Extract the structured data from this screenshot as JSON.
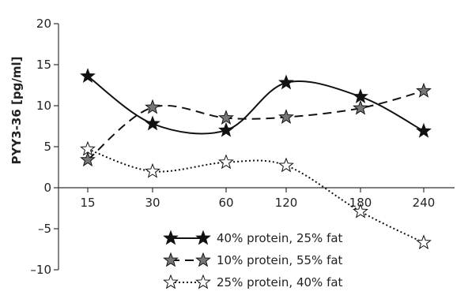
{
  "chart_data": {
    "type": "line",
    "title": "",
    "xlabel": "",
    "ylabel": "PYY3-36 [pg/ml]",
    "categories": [
      "15",
      "30",
      "60",
      "120",
      "180",
      "240"
    ],
    "ylim": [
      -10,
      20
    ],
    "yticks": [
      "–10",
      "–5",
      "0",
      "5",
      "10",
      "15",
      "20"
    ],
    "grid": false,
    "legend_position": "bottom-center",
    "series": [
      {
        "name": "40% protein, 25% fat",
        "values": [
          13.6,
          7.8,
          7.0,
          12.8,
          11.1,
          6.9
        ],
        "line": "solid",
        "marker": "filled-black-star",
        "color": "#111111"
      },
      {
        "name": "10% protein, 55% fat",
        "values": [
          3.4,
          9.8,
          8.5,
          8.6,
          9.7,
          11.8
        ],
        "line": "dashed",
        "marker": "filled-gray-star",
        "color": "#777777"
      },
      {
        "name": "25% protein, 40% fat",
        "values": [
          4.7,
          2.0,
          3.1,
          2.7,
          -2.9,
          -6.7
        ],
        "line": "dotted",
        "marker": "hollow-star",
        "color": "#ffffff"
      }
    ]
  }
}
